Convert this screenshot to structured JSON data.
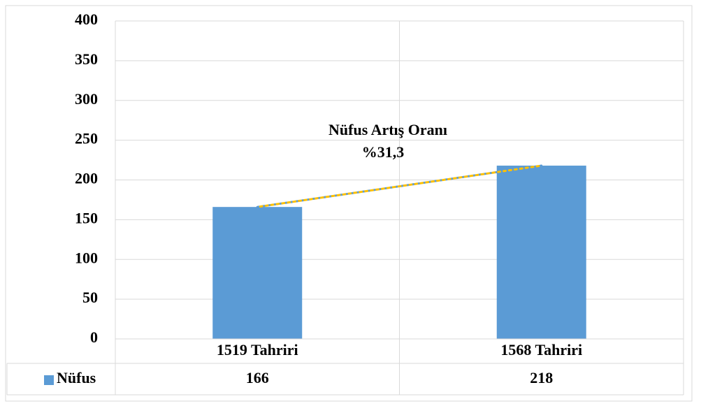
{
  "chart_data": {
    "type": "bar",
    "categories": [
      "1519 Tahriri",
      "1568 Tahriri"
    ],
    "series": [
      {
        "name": "Nüfus",
        "color": "#5b9bd5",
        "values": [
          166,
          218
        ]
      }
    ],
    "ylim": [
      0,
      400
    ],
    "yticks": [
      0,
      50,
      100,
      150,
      200,
      250,
      300,
      350,
      400
    ],
    "grid": true,
    "data_table": true,
    "trendline_colors": [
      "#5b9bd5",
      "#ffc000"
    ],
    "annotations": [
      "Nüfus Artış Oranı",
      "%31,3"
    ]
  }
}
